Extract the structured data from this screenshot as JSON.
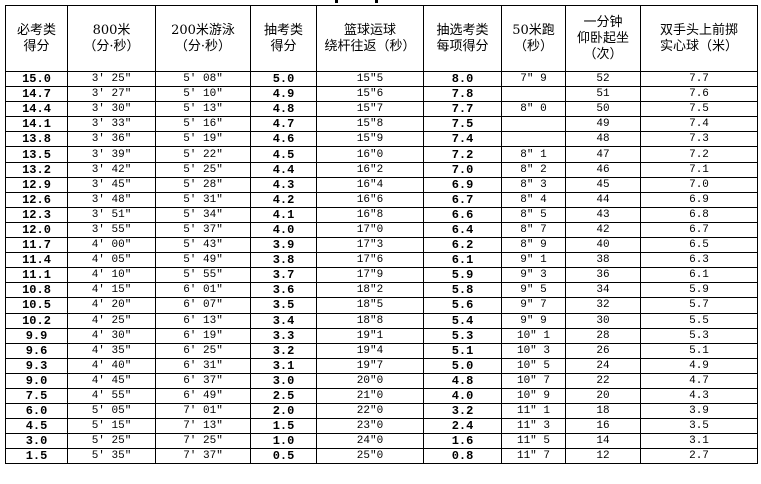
{
  "headers": [
    [
      "必考类",
      "得分"
    ],
    [
      "800米",
      "（分·秒）"
    ],
    [
      "200米游泳",
      "（分·秒）"
    ],
    [
      "抽考类",
      "得分"
    ],
    [
      "篮球运球",
      "绕杆往返（秒）"
    ],
    [
      "抽选考类",
      "每项得分"
    ],
    [
      "50米跑",
      "（秒）"
    ],
    [
      "一分钟",
      "仰卧起坐",
      "（次）"
    ],
    [
      "双手头上前掷",
      "实心球（米）"
    ]
  ],
  "bold_columns": [
    0,
    3,
    5
  ],
  "rows": [
    [
      "15.0",
      "3′ 25″",
      "5′ 08″",
      "5.0",
      "15″5",
      "8.0",
      "7″ 9",
      "52",
      "7.7"
    ],
    [
      "14.7",
      "3′ 27″",
      "5′ 10″",
      "4.9",
      "15″6",
      "7.8",
      "",
      "51",
      "7.6"
    ],
    [
      "14.4",
      "3′ 30″",
      "5′ 13″",
      "4.8",
      "15″7",
      "7.7",
      "8″ 0",
      "50",
      "7.5"
    ],
    [
      "14.1",
      "3′ 33″",
      "5′ 16″",
      "4.7",
      "15″8",
      "7.5",
      "",
      "49",
      "7.4"
    ],
    [
      "13.8",
      "3′ 36″",
      "5′ 19″",
      "4.6",
      "15″9",
      "7.4",
      "",
      "48",
      "7.3"
    ],
    [
      "13.5",
      "3′ 39″",
      "5′ 22″",
      "4.5",
      "16″0",
      "7.2",
      "8″ 1",
      "47",
      "7.2"
    ],
    [
      "13.2",
      "3′ 42″",
      "5′ 25″",
      "4.4",
      "16″2",
      "7.0",
      "8″ 2",
      "46",
      "7.1"
    ],
    [
      "12.9",
      "3′ 45″",
      "5′ 28″",
      "4.3",
      "16″4",
      "6.9",
      "8″ 3",
      "45",
      "7.0"
    ],
    [
      "12.6",
      "3′ 48″",
      "5′ 31″",
      "4.2",
      "16″6",
      "6.7",
      "8″ 4",
      "44",
      "6.9"
    ],
    [
      "12.3",
      "3′ 51″",
      "5′ 34″",
      "4.1",
      "16″8",
      "6.6",
      "8″ 5",
      "43",
      "6.8"
    ],
    [
      "12.0",
      "3′ 55″",
      "5′ 37″",
      "4.0",
      "17″0",
      "6.4",
      "8″ 7",
      "42",
      "6.7"
    ],
    [
      "11.7",
      "4′ 00″",
      "5′ 43″",
      "3.9",
      "17″3",
      "6.2",
      "8″ 9",
      "40",
      "6.5"
    ],
    [
      "11.4",
      "4′ 05″",
      "5′ 49″",
      "3.8",
      "17″6",
      "6.1",
      "9″ 1",
      "38",
      "6.3"
    ],
    [
      "11.1",
      "4′ 10″",
      "5′ 55″",
      "3.7",
      "17″9",
      "5.9",
      "9″ 3",
      "36",
      "6.1"
    ],
    [
      "10.8",
      "4′ 15″",
      "6′ 01″",
      "3.6",
      "18″2",
      "5.8",
      "9″ 5",
      "34",
      "5.9"
    ],
    [
      "10.5",
      "4′ 20″",
      "6′ 07″",
      "3.5",
      "18″5",
      "5.6",
      "9″ 7",
      "32",
      "5.7"
    ],
    [
      "10.2",
      "4′ 25″",
      "6′ 13″",
      "3.4",
      "18″8",
      "5.4",
      "9″ 9",
      "30",
      "5.5"
    ],
    [
      "9.9",
      "4′ 30″",
      "6′ 19″",
      "3.3",
      "19″1",
      "5.3",
      "10″ 1",
      "28",
      "5.3"
    ],
    [
      "9.6",
      "4′ 35″",
      "6′ 25″",
      "3.2",
      "19″4",
      "5.1",
      "10″ 3",
      "26",
      "5.1"
    ],
    [
      "9.3",
      "4′ 40″",
      "6′ 31″",
      "3.1",
      "19″7",
      "5.0",
      "10″ 5",
      "24",
      "4.9"
    ],
    [
      "9.0",
      "4′ 45″",
      "6′ 37″",
      "3.0",
      "20″0",
      "4.8",
      "10″ 7",
      "22",
      "4.7"
    ],
    [
      "7.5",
      "4′ 55″",
      "6′ 49″",
      "2.5",
      "21″0",
      "4.0",
      "10″ 9",
      "20",
      "4.3"
    ],
    [
      "6.0",
      "5′ 05″",
      "7′ 01″",
      "2.0",
      "22″0",
      "3.2",
      "11″ 1",
      "18",
      "3.9"
    ],
    [
      "4.5",
      "5′ 15″",
      "7′ 13″",
      "1.5",
      "23″0",
      "2.4",
      "11″ 3",
      "16",
      "3.5"
    ],
    [
      "3.0",
      "5′ 25″",
      "7′ 25″",
      "1.0",
      "24″0",
      "1.6",
      "11″ 5",
      "14",
      "3.1"
    ],
    [
      "1.5",
      "5′ 35″",
      "7′ 37″",
      "0.5",
      "25″0",
      "0.8",
      "11″ 7",
      "12",
      "2.7"
    ]
  ]
}
